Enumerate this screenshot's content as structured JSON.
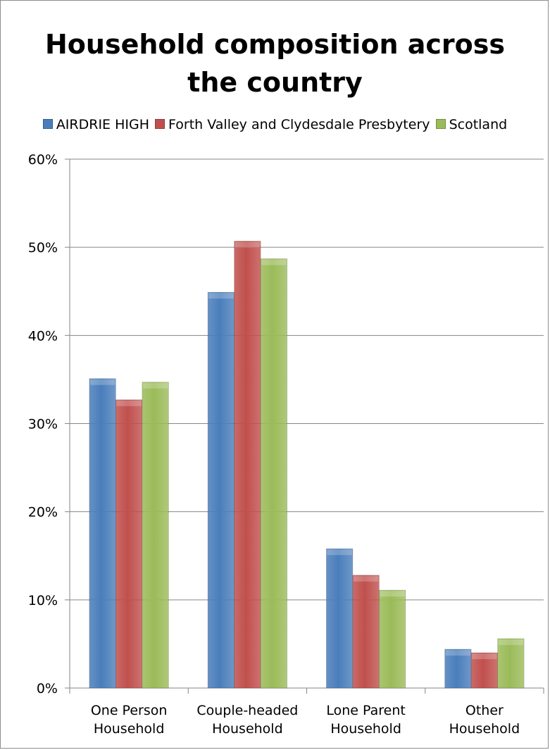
{
  "chart_data": {
    "type": "bar",
    "title": "Household composition across the country",
    "title_lines": [
      "Household composition across",
      "the country"
    ],
    "categories": [
      [
        "One Person",
        "Household"
      ],
      [
        "Couple-headed",
        "Household"
      ],
      [
        "Lone Parent",
        "Household"
      ],
      [
        "Other",
        "Household"
      ]
    ],
    "series": [
      {
        "name": "AIRDRIE HIGH",
        "values": [
          0.351,
          0.449,
          0.158,
          0.044
        ],
        "color": "#4a7ebb"
      },
      {
        "name": "Forth Valley and Clydesdale Presbytery",
        "values": [
          0.327,
          0.507,
          0.128,
          0.04
        ],
        "color": "#c0504d"
      },
      {
        "name": "Scotland",
        "values": [
          0.347,
          0.487,
          0.111,
          0.056
        ],
        "color": "#9bbb59"
      }
    ],
    "ylim": [
      0,
      0.6
    ],
    "yticks": [
      "0%",
      "10%",
      "20%",
      "30%",
      "40%",
      "50%",
      "60%"
    ],
    "ytick_values": [
      0,
      0.1,
      0.2,
      0.3,
      0.4,
      0.5,
      0.6
    ],
    "xlabel": "",
    "ylabel": "",
    "grid": true,
    "legend_position": "top"
  }
}
